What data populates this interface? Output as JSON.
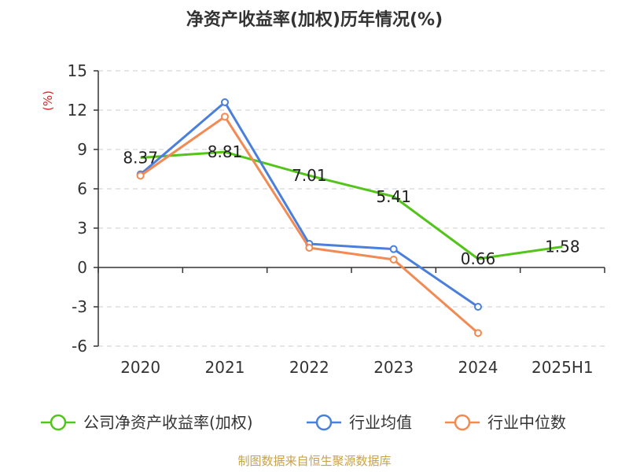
{
  "chart_data": {
    "type": "line",
    "title": "净资产收益率(加权)历年情况(%)",
    "ylabel": "(%)",
    "xlabel": "",
    "categories": [
      "2020",
      "2021",
      "2022",
      "2023",
      "2024",
      "2025H1"
    ],
    "ylim": [
      -6,
      15
    ],
    "yticks": [
      15,
      12,
      9,
      6,
      3,
      0,
      -3,
      -6
    ],
    "grid": true,
    "legend_position": "bottom",
    "series": [
      {
        "name": "公司净资产收益率(加权)",
        "color": "#52c41a",
        "values": [
          8.37,
          8.81,
          7.01,
          5.41,
          0.66,
          1.58
        ],
        "labels": [
          "8.37",
          "8.81",
          "7.01",
          "5.41",
          "0.66",
          "1.58"
        ],
        "show_markers": false
      },
      {
        "name": "行业均值",
        "color": "#4a7fdc",
        "values": [
          7.1,
          12.6,
          1.8,
          1.4,
          -3.0,
          null
        ],
        "show_markers": true
      },
      {
        "name": "行业中位数",
        "color": "#f28a53",
        "values": [
          7.0,
          11.5,
          1.5,
          0.6,
          -5.0,
          null
        ],
        "show_markers": true
      }
    ]
  },
  "footer": {
    "source": "制图数据来自恒生聚源数据库"
  }
}
